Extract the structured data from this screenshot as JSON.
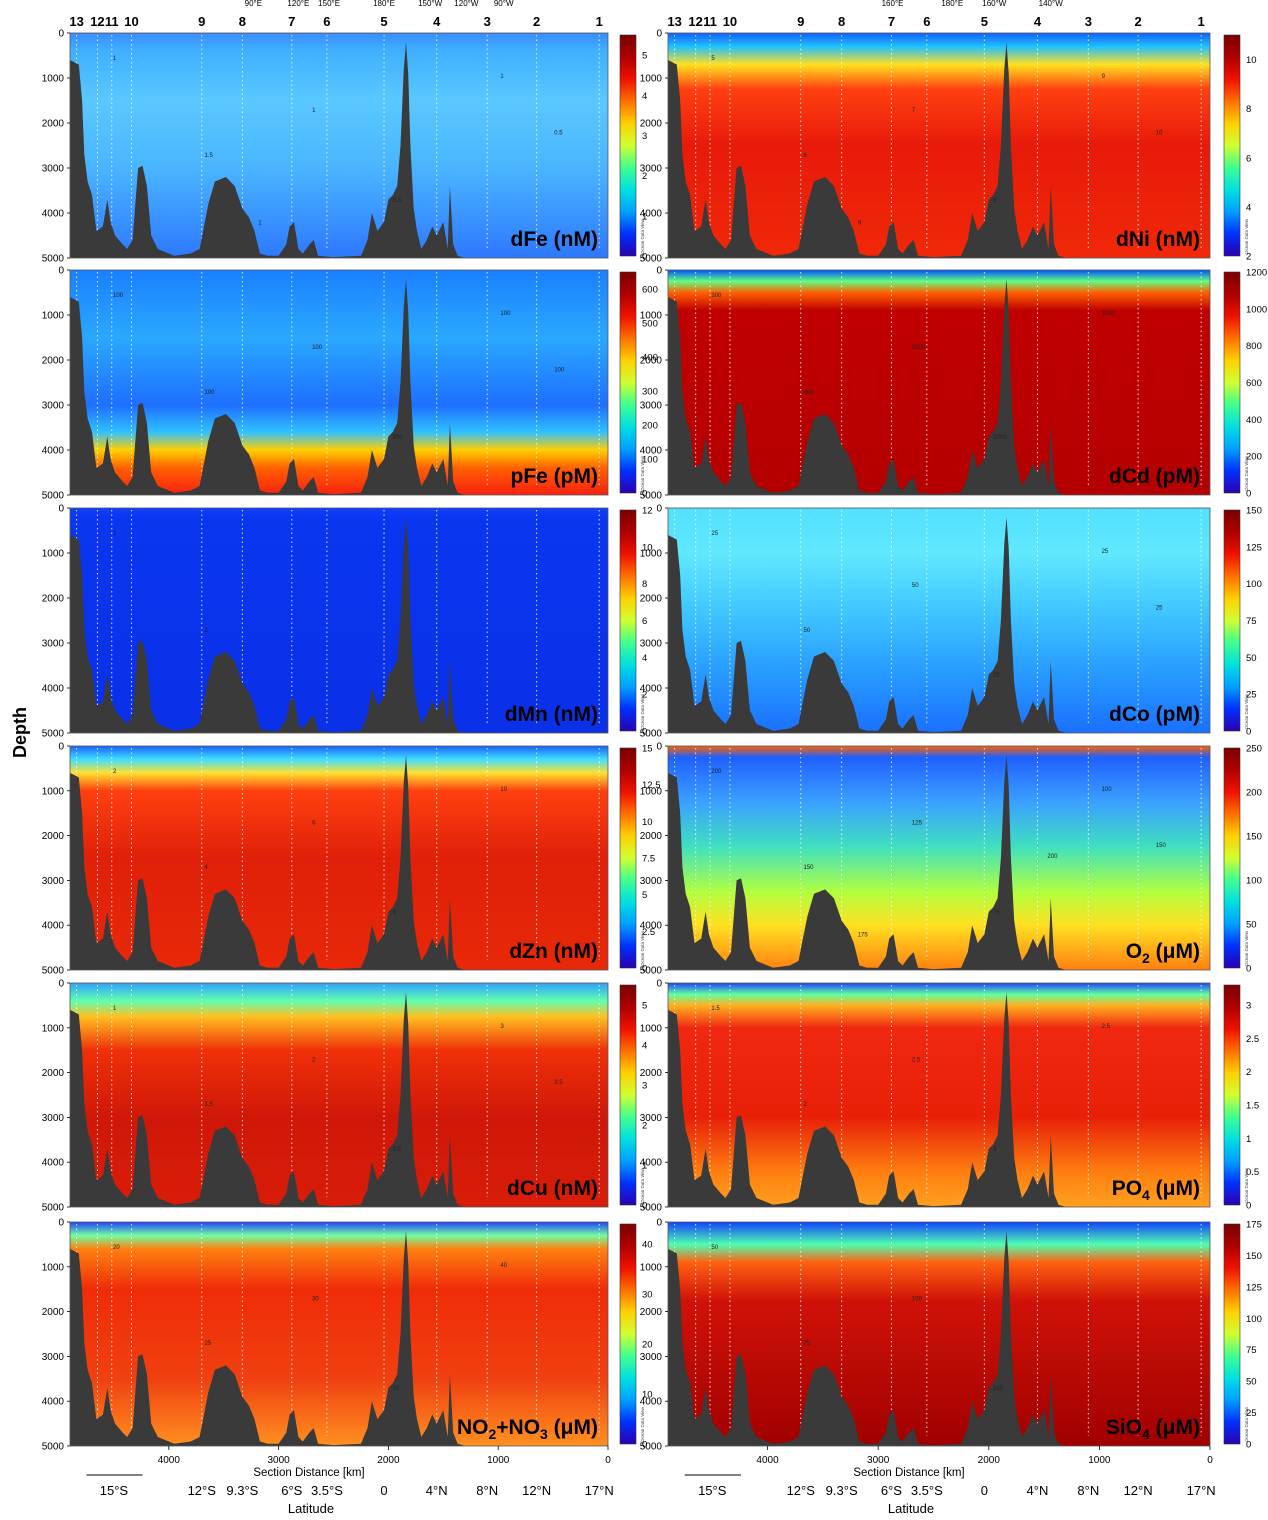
{
  "figure": {
    "y_axis_title": "Depth",
    "x_axis_title": "Section Distance [km]",
    "latitude_title": "Latitude",
    "station_numbers": [
      "13",
      "12",
      "11",
      "10",
      "9",
      "8",
      "7",
      "6",
      "5",
      "4",
      "3",
      "2",
      "1"
    ],
    "longitude_labels_left": [
      "90°E",
      "120°E",
      "150°E",
      "180°E",
      "150°W",
      "120°W",
      "90°W"
    ],
    "longitude_labels_right": [
      "160°E",
      "180°E",
      "160°W",
      "140°W"
    ],
    "depth_ticks": [
      "0",
      "1000",
      "2000",
      "3000",
      "4000",
      "5000"
    ],
    "distance_ticks": [
      "4000",
      "3000",
      "2000",
      "1000",
      "0"
    ],
    "latitude_labels": [
      "15°S",
      "12°S",
      "9.3°S",
      "6°S",
      "3.5°S",
      "0",
      "4°N",
      "8°N",
      "12°N",
      "17°N"
    ],
    "colorbar_tag": "Ocean Data View"
  },
  "chart_data": [
    {
      "type": "heatmap",
      "panel": "dFe",
      "title_main": "dFe",
      "unit": "(nM)",
      "cbar_ticks": [
        "0",
        "1",
        "2",
        "3",
        "4",
        "5"
      ],
      "cbar_range": [
        0,
        5.5
      ],
      "contour_labels": [
        "1",
        "1.5",
        "1",
        "0.5",
        "1",
        "0.5",
        "1"
      ],
      "ylim": [
        5000,
        0
      ],
      "xlim": [
        4900,
        0
      ]
    },
    {
      "type": "heatmap",
      "panel": "dNi",
      "title_main": "dNi",
      "unit": "(nM)",
      "cbar_ticks": [
        "2",
        "4",
        "6",
        "8",
        "10"
      ],
      "cbar_range": [
        2,
        11
      ],
      "contour_labels": [
        "5",
        "6",
        "7",
        "8",
        "9",
        "10",
        "9"
      ],
      "ylim": [
        5000,
        0
      ],
      "xlim": [
        4900,
        0
      ]
    },
    {
      "type": "heatmap",
      "panel": "pFe",
      "title_main": "pFe",
      "unit": "(pM)",
      "cbar_ticks": [
        "0",
        "100",
        "200",
        "300",
        "400",
        "500",
        "600"
      ],
      "cbar_range": [
        0,
        650
      ],
      "contour_labels": [
        "100",
        "100",
        "100",
        "200",
        "100",
        "100"
      ],
      "ylim": [
        5000,
        0
      ],
      "xlim": [
        4900,
        0
      ]
    },
    {
      "type": "heatmap",
      "panel": "dCd",
      "title_main": "dCd",
      "unit": "(pM)",
      "cbar_ticks": [
        "0",
        "200",
        "400",
        "600",
        "800",
        "1000",
        "1200"
      ],
      "cbar_range": [
        0,
        1200
      ],
      "contour_labels": [
        "300",
        "400",
        "1000",
        "1000",
        "1000"
      ],
      "ylim": [
        5000,
        0
      ],
      "xlim": [
        4900,
        0
      ]
    },
    {
      "type": "heatmap",
      "panel": "dMn",
      "title_main": "dMn",
      "unit": "(nM)",
      "cbar_ticks": [
        "0",
        "2",
        "4",
        "6",
        "8",
        "10",
        "12"
      ],
      "cbar_range": [
        0,
        12
      ],
      "contour_labels": [
        "2",
        "2"
      ],
      "ylim": [
        5000,
        0
      ],
      "xlim": [
        4900,
        0
      ]
    },
    {
      "type": "heatmap",
      "panel": "dCo",
      "title_main": "dCo",
      "unit": "(pM)",
      "cbar_ticks": [
        "0",
        "25",
        "50",
        "75",
        "100",
        "125",
        "150"
      ],
      "cbar_range": [
        0,
        150
      ],
      "contour_labels": [
        "25",
        "50",
        "50",
        "25",
        "25",
        "25"
      ],
      "ylim": [
        5000,
        0
      ],
      "xlim": [
        4900,
        0
      ]
    },
    {
      "type": "heatmap",
      "panel": "dZn",
      "title_main": "dZn",
      "unit": "(nM)",
      "cbar_ticks": [
        "0",
        "2.5",
        "5",
        "7.5",
        "10",
        "12.5",
        "15"
      ],
      "cbar_range": [
        0,
        15
      ],
      "contour_labels": [
        "2",
        "4",
        "6",
        "8",
        "10"
      ],
      "ylim": [
        5000,
        0
      ],
      "xlim": [
        4900,
        0
      ]
    },
    {
      "type": "heatmap",
      "panel": "O2",
      "title_main": "O",
      "title_sub": "2",
      "unit": "(μM)",
      "cbar_ticks": [
        "0",
        "50",
        "100",
        "150",
        "200",
        "250"
      ],
      "cbar_range": [
        0,
        250
      ],
      "contour_labels": [
        "200",
        "150",
        "125",
        "75",
        "100",
        "150",
        "175",
        "200"
      ],
      "ylim": [
        5000,
        0
      ],
      "xlim": [
        4900,
        0
      ]
    },
    {
      "type": "heatmap",
      "panel": "dCu",
      "title_main": "dCu",
      "unit": "(nM)",
      "cbar_ticks": [
        "0",
        "1",
        "2",
        "3",
        "4",
        "5"
      ],
      "cbar_range": [
        0,
        5.5
      ],
      "contour_labels": [
        "1",
        "1.5",
        "2",
        "2.5",
        "3",
        "3.5"
      ],
      "ylim": [
        5000,
        0
      ],
      "xlim": [
        4900,
        0
      ]
    },
    {
      "type": "heatmap",
      "panel": "PO4",
      "title_main": "PO",
      "title_sub": "4",
      "unit": "(μM)",
      "cbar_ticks": [
        "0",
        "0.5",
        "1",
        "1.5",
        "2",
        "2.5",
        "3"
      ],
      "cbar_range": [
        0,
        3.3
      ],
      "contour_labels": [
        "1.5",
        "2",
        "2.5",
        "3",
        "2.5"
      ],
      "ylim": [
        5000,
        0
      ],
      "xlim": [
        4900,
        0
      ]
    },
    {
      "type": "heatmap",
      "panel": "NO2+NO3",
      "title_main": "NO",
      "title_sub": "2",
      "title_mid": "+NO",
      "title_sub2": "3",
      "unit": "(μM)",
      "cbar_ticks": [
        "0",
        "10",
        "20",
        "30",
        "40"
      ],
      "cbar_range": [
        0,
        44
      ],
      "contour_labels": [
        "20",
        "25",
        "30",
        "35",
        "40"
      ],
      "ylim": [
        5000,
        0
      ],
      "xlim": [
        4900,
        0
      ]
    },
    {
      "type": "heatmap",
      "panel": "SiO4",
      "title_main": "SiO",
      "title_sub": "4",
      "unit": "(μM)",
      "cbar_ticks": [
        "0",
        "25",
        "50",
        "75",
        "100",
        "125",
        "150",
        "175"
      ],
      "cbar_range": [
        0,
        175
      ],
      "contour_labels": [
        "50",
        "75",
        "100",
        "125"
      ],
      "ylim": [
        5000,
        0
      ],
      "xlim": [
        4900,
        0
      ]
    }
  ]
}
